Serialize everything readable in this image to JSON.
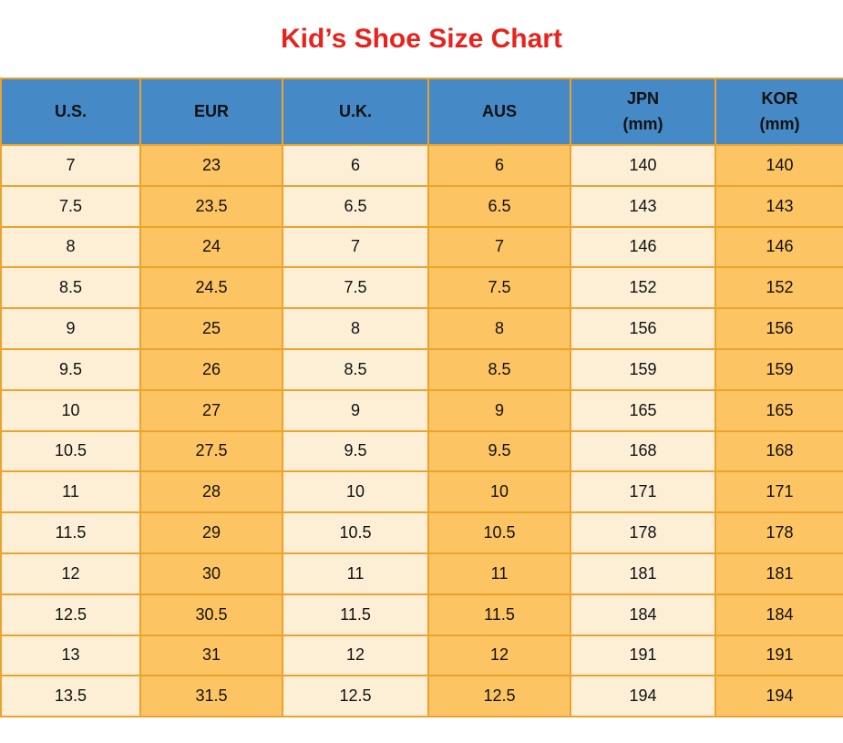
{
  "title": "Kid’s Shoe Size Chart",
  "colors": {
    "title_red": "#e8231d",
    "header_blue": "#4589c6",
    "row_cream": "#fcefd6",
    "row_orange": "#fcc462",
    "border_gold": "#eca32e",
    "text": "#111111"
  },
  "chart_data": {
    "type": "table",
    "title": "Kid’s Shoe Size Chart",
    "columns": [
      {
        "label": "U.S."
      },
      {
        "label": "EUR"
      },
      {
        "label": "U.K."
      },
      {
        "label": "AUS"
      },
      {
        "label": "JPN",
        "sub": "(mm)"
      },
      {
        "label": "KOR",
        "sub": "(mm)"
      }
    ],
    "rows": [
      [
        "7",
        "23",
        "6",
        "6",
        "140",
        "140"
      ],
      [
        "7.5",
        "23.5",
        "6.5",
        "6.5",
        "143",
        "143"
      ],
      [
        "8",
        "24",
        "7",
        "7",
        "146",
        "146"
      ],
      [
        "8.5",
        "24.5",
        "7.5",
        "7.5",
        "152",
        "152"
      ],
      [
        "9",
        "25",
        "8",
        "8",
        "156",
        "156"
      ],
      [
        "9.5",
        "26",
        "8.5",
        "8.5",
        "159",
        "159"
      ],
      [
        "10",
        "27",
        "9",
        "9",
        "165",
        "165"
      ],
      [
        "10.5",
        "27.5",
        "9.5",
        "9.5",
        "168",
        "168"
      ],
      [
        "11",
        "28",
        "10",
        "10",
        "171",
        "171"
      ],
      [
        "11.5",
        "29",
        "10.5",
        "10.5",
        "178",
        "178"
      ],
      [
        "12",
        "30",
        "11",
        "11",
        "181",
        "181"
      ],
      [
        "12.5",
        "30.5",
        "11.5",
        "11.5",
        "184",
        "184"
      ],
      [
        "13",
        "31",
        "12",
        "12",
        "191",
        "191"
      ],
      [
        "13.5",
        "31.5",
        "12.5",
        "12.5",
        "194",
        "194"
      ]
    ]
  }
}
